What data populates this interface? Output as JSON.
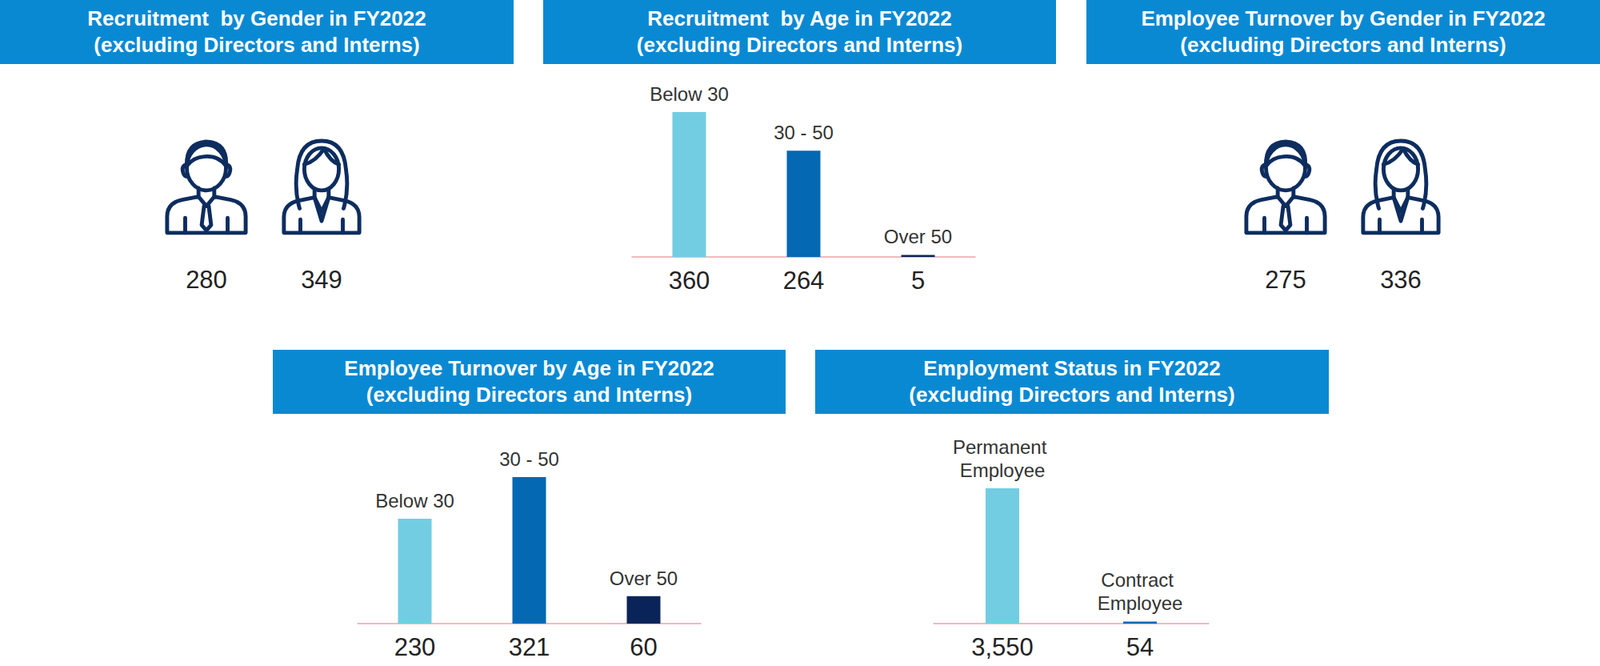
{
  "chart_data": [
    {
      "type": "pictogram",
      "title": "Recruitment  by Gender in FY2022",
      "subtitle": "(excluding Directors and Interns)",
      "categories": [
        null,
        null
      ],
      "values": [
        280,
        349
      ],
      "color": "#0d2d5f"
    },
    {
      "type": "bar",
      "title": "Recruitment  by Age in FY2022",
      "subtitle": "(excluding Directors and Interns)",
      "categories": [
        "Below 30",
        "30 - 50",
        "Over 50"
      ],
      "values": [
        360,
        264,
        5
      ],
      "colors": [
        "#72cde3",
        "#0568b3",
        "#0a2459"
      ],
      "ylim": [
        0,
        360
      ],
      "data_labels": true,
      "tick_labels": false
    },
    {
      "type": "pictogram",
      "title": "Employee Turnover by Gender in FY2022",
      "subtitle": "(excluding Directors and Interns)",
      "categories": [
        null,
        null
      ],
      "values": [
        275,
        336
      ],
      "color": "#0d2d5f"
    },
    {
      "type": "bar",
      "title": "Employee Turnover by Age in FY2022",
      "subtitle": "(excluding Directors and Interns)",
      "categories": [
        "Below 30",
        "30 - 50",
        "Over 50"
      ],
      "values": [
        230,
        321,
        60
      ],
      "colors": [
        "#72cde3",
        "#0568b3",
        "#0a2459"
      ],
      "ylim": [
        0,
        321
      ],
      "data_labels": true,
      "tick_labels": false
    },
    {
      "type": "bar",
      "title": "Employment Status in FY2022",
      "subtitle": "(excluding Directors and Interns)",
      "categories": [
        "Permanent Employee",
        "Contract Employee"
      ],
      "values": [
        3550,
        54
      ],
      "value_labels": [
        "3,550",
        "54"
      ],
      "colors": [
        "#72cde3",
        "#0568b3"
      ],
      "ylim": [
        0,
        3550
      ],
      "data_labels": true,
      "tick_labels": false
    }
  ]
}
